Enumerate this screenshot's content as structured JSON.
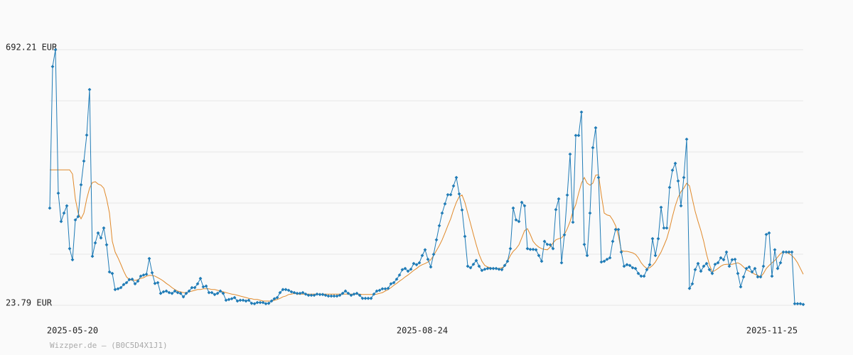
{
  "chart_data": {
    "type": "line",
    "categories": [
      null,
      null,
      null,
      null,
      null,
      null,
      null,
      null,
      "2025-05-20",
      null,
      null,
      null,
      null,
      null,
      null,
      null,
      null,
      null,
      null,
      null,
      null,
      null,
      null,
      null,
      null,
      null,
      null,
      null,
      null,
      null,
      null,
      null,
      null,
      null,
      null,
      null,
      null,
      null,
      null,
      null,
      null,
      null,
      null,
      null,
      null,
      null,
      null,
      null,
      null,
      null,
      null,
      null,
      null,
      null,
      null,
      null,
      null,
      null,
      null,
      null,
      null,
      null,
      null,
      null,
      null,
      null,
      null,
      null,
      null,
      null,
      null,
      null,
      null,
      null,
      null,
      null,
      null,
      null,
      null,
      null,
      null,
      null,
      null,
      null,
      null,
      null,
      null,
      null,
      null,
      null,
      null,
      null,
      null,
      null,
      null,
      null,
      null,
      null,
      null,
      null,
      null,
      null,
      null,
      null,
      null,
      null,
      null,
      null,
      null,
      null,
      null,
      null,
      null,
      null,
      null,
      null,
      null,
      null,
      null,
      null,
      null,
      null,
      null,
      null,
      null,
      null,
      null,
      null,
      null,
      null,
      null,
      "2025-08-24",
      null,
      null,
      null,
      null,
      null,
      null,
      null,
      null,
      null,
      null,
      null,
      null,
      null,
      null,
      null,
      null,
      null,
      null,
      null,
      null,
      null,
      null,
      null,
      null,
      null,
      null,
      null,
      null,
      null,
      null,
      null,
      null,
      null,
      null,
      null,
      null,
      null,
      null,
      null,
      null,
      null,
      null,
      null,
      null,
      null,
      null,
      null,
      null,
      null,
      null,
      null,
      null,
      null,
      null,
      null,
      null,
      null,
      null,
      null,
      null,
      null,
      null,
      null,
      null,
      null,
      null,
      null,
      null,
      null,
      null,
      null,
      null,
      null,
      null,
      null,
      null,
      null,
      null,
      null,
      null,
      null,
      null,
      null,
      null,
      null,
      null,
      null,
      null,
      null,
      null,
      null,
      null,
      null,
      null,
      null,
      null,
      null,
      null,
      null,
      null,
      null,
      null,
      null,
      null,
      null,
      null,
      null,
      null,
      null,
      null,
      null,
      null,
      null,
      null,
      null,
      null,
      null,
      null,
      null,
      null,
      null,
      null,
      "2025-11-25",
      null,
      null,
      null,
      null,
      null,
      null,
      null,
      null,
      null,
      null,
      null
    ],
    "series": [
      {
        "color": "#1f7bb6",
        "marker": "diamond",
        "values": [
          278,
          648,
          692,
          317,
          243,
          265,
          284,
          172,
          143,
          247,
          256,
          339,
          401,
          469,
          588,
          152,
          187,
          213,
          200,
          226,
          182,
          111,
          107,
          65,
          67,
          70,
          78,
          83,
          91,
          92,
          80,
          87,
          100,
          103,
          105,
          146,
          109,
          81,
          83,
          55,
          59,
          61,
          57,
          55,
          61,
          57,
          55,
          46,
          55,
          61,
          70,
          70,
          80,
          94,
          72,
          74,
          57,
          57,
          52,
          55,
          61,
          55,
          37,
          39,
          41,
          44,
          35,
          37,
          37,
          35,
          37,
          29,
          28,
          31,
          31,
          31,
          28,
          29,
          35,
          41,
          44,
          57,
          65,
          65,
          63,
          59,
          57,
          55,
          55,
          57,
          53,
          50,
          50,
          50,
          53,
          52,
          52,
          50,
          48,
          48,
          48,
          48,
          50,
          55,
          61,
          55,
          50,
          53,
          55,
          50,
          42,
          42,
          42,
          42,
          53,
          61,
          63,
          67,
          67,
          68,
          80,
          83,
          92,
          103,
          117,
          120,
          113,
          118,
          133,
          130,
          135,
          154,
          169,
          144,
          124,
          157,
          195,
          232,
          265,
          289,
          313,
          313,
          336,
          358,
          315,
          273,
          204,
          126,
          122,
          131,
          141,
          126,
          115,
          118,
          120,
          120,
          120,
          120,
          118,
          117,
          128,
          139,
          172,
          278,
          247,
          243,
          293,
          284,
          172,
          170,
          170,
          169,
          154,
          139,
          191,
          183,
          182,
          172,
          274,
          302,
          135,
          208,
          312,
          419,
          241,
          468,
          468,
          529,
          183,
          154,
          265,
          436,
          488,
          358,
          137,
          139,
          144,
          148,
          191,
          222,
          222,
          163,
          126,
          130,
          128,
          122,
          120,
          107,
          100,
          100,
          117,
          130,
          198,
          154,
          198,
          280,
          226,
          226,
          332,
          377,
          395,
          349,
          284,
          358,
          458,
          68,
          80,
          117,
          133,
          113,
          126,
          133,
          117,
          107,
          131,
          135,
          148,
          143,
          163,
          126,
          143,
          144,
          107,
          72,
          98,
          120,
          124,
          111,
          120,
          98,
          98,
          126,
          209,
          213,
          100,
          169,
          120,
          135,
          163,
          163,
          163,
          163,
          28,
          28,
          28,
          26
        ]
      },
      {
        "color": "#e0892a",
        "values": [
          378,
          378,
          378,
          378,
          378,
          378,
          378,
          378,
          367,
          302,
          265,
          250,
          265,
          302,
          330,
          345,
          347,
          341,
          338,
          330,
          302,
          265,
          191,
          163,
          148,
          131,
          113,
          98,
          91,
          89,
          89,
          91,
          94,
          96,
          100,
          102,
          102,
          100,
          96,
          92,
          87,
          81,
          76,
          70,
          65,
          61,
          59,
          57,
          57,
          59,
          61,
          63,
          65,
          65,
          67,
          67,
          67,
          65,
          65,
          63,
          61,
          59,
          57,
          55,
          53,
          52,
          50,
          48,
          46,
          44,
          42,
          41,
          39,
          39,
          37,
          35,
          35,
          35,
          35,
          37,
          39,
          42,
          46,
          48,
          52,
          53,
          55,
          53,
          53,
          53,
          53,
          53,
          53,
          53,
          53,
          53,
          53,
          53,
          53,
          53,
          53,
          53,
          53,
          53,
          53,
          53,
          53,
          53,
          53,
          53,
          52,
          52,
          52,
          52,
          52,
          53,
          55,
          57,
          61,
          65,
          70,
          76,
          81,
          87,
          92,
          98,
          103,
          109,
          115,
          120,
          126,
          130,
          133,
          137,
          143,
          154,
          167,
          180,
          195,
          213,
          232,
          250,
          273,
          293,
          308,
          312,
          293,
          265,
          237,
          209,
          182,
          157,
          139,
          128,
          124,
          122,
          120,
          120,
          120,
          122,
          126,
          139,
          154,
          165,
          172,
          182,
          200,
          219,
          224,
          209,
          191,
          182,
          176,
          172,
          170,
          169,
          176,
          187,
          195,
          198,
          200,
          209,
          224,
          243,
          269,
          287,
          317,
          343,
          358,
          343,
          338,
          343,
          364,
          365,
          312,
          265,
          260,
          258,
          247,
          232,
          206,
          167,
          165,
          165,
          163,
          161,
          157,
          148,
          135,
          126,
          120,
          122,
          128,
          137,
          150,
          163,
          180,
          198,
          224,
          256,
          284,
          306,
          321,
          330,
          343,
          336,
          302,
          269,
          243,
          219,
          191,
          157,
          130,
          111,
          115,
          120,
          126,
          130,
          131,
          131,
          131,
          133,
          135,
          131,
          124,
          117,
          113,
          109,
          105,
          102,
          98,
          107,
          120,
          128,
          135,
          141,
          150,
          159,
          163,
          163,
          159,
          154,
          146,
          135,
          120,
          105
        ]
      }
    ],
    "ylim": [
      23.79,
      692.21
    ],
    "yticks": [
      {
        "value": 23.79,
        "label": "23.79 EUR"
      },
      {
        "value": 692.21,
        "label": "692.21 EUR"
      }
    ],
    "ygrid": [
      157.47,
      291.16,
      424.84,
      558.53
    ],
    "grid": true,
    "footer": "Wizzper.de – (B0C5D4X1J1)"
  }
}
